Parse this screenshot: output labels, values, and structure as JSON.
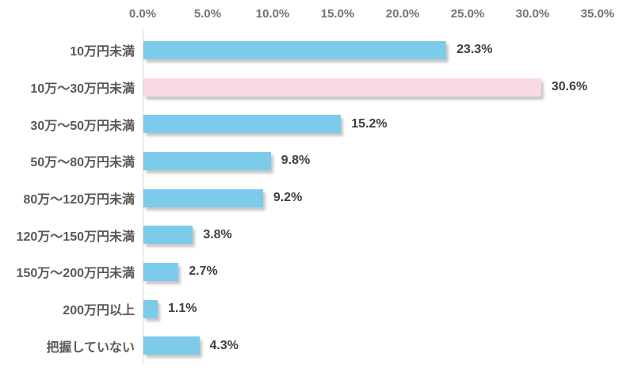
{
  "chart_data": {
    "type": "bar",
    "orientation": "horizontal",
    "title": "",
    "xlabel": "",
    "ylabel": "",
    "categories": [
      "10万円未満",
      "10万〜30万円未満",
      "30万〜50万円未満",
      "50万〜80万円未満",
      "80万〜120万円未満",
      "120万〜150万円未満",
      "150万〜200万円未満",
      "200万円以上",
      "把握していない"
    ],
    "values": [
      23.3,
      30.6,
      15.2,
      9.8,
      9.2,
      3.8,
      2.7,
      1.1,
      4.3
    ],
    "value_labels": [
      "23.3%",
      "30.6%",
      "15.2%",
      "9.8%",
      "9.2%",
      "3.8%",
      "2.7%",
      "1.1%",
      "4.3%"
    ],
    "highlight_index": 1,
    "xlim": [
      0,
      35
    ],
    "x_tick_values": [
      0,
      5,
      10,
      15,
      20,
      25,
      30,
      35
    ],
    "x_tick_labels": [
      "0.0%",
      "5.0%",
      "10.0%",
      "15.0%",
      "20.0%",
      "25.0%",
      "30.0%",
      "35.0%"
    ],
    "grid": false,
    "legend": false,
    "tick_position": "top",
    "colors": {
      "bar_default": "#7dcbea",
      "bar_highlight": "#f8d9e4",
      "axis_line": "#d9d9d9",
      "tick_label": "#737373",
      "category_label": "#595959",
      "value_label": "#404040",
      "background": "#ffffff"
    }
  }
}
